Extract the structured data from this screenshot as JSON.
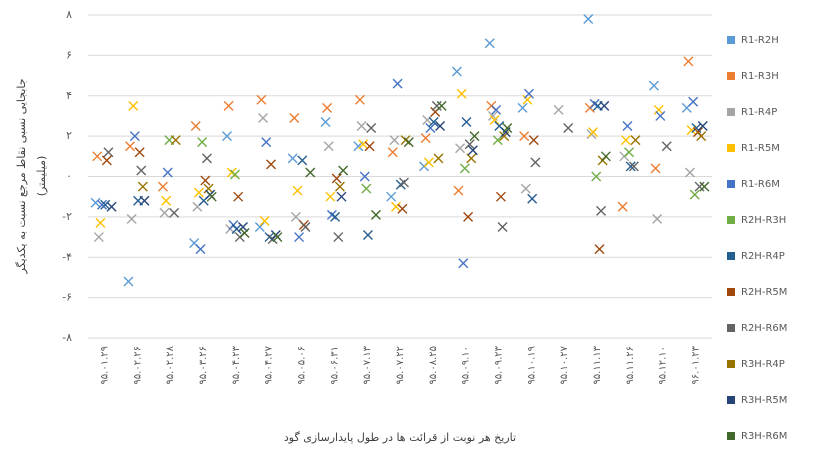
{
  "chart_data": {
    "type": "scatter",
    "y_axis_label": "جابجایی نسبی نقاط مرجع نسبت به یکدیگر",
    "y_axis_unit": "(میلیمتر)",
    "x_axis_label": "تاریخ هر نوبت از قرائت ها در طول پایدارسازی گود",
    "categories": [
      "۹۵.۰۱.۲۹",
      "۹۵.۰۲.۲۶",
      "۹۵.۰۲.۲۸",
      "۹۵.۰۳.۲۶",
      "۹۵.۰۴.۲۳",
      "۹۵.۰۴.۲۷",
      "۹۵.۰۵.۰۶",
      "۹۵.۰۶.۳۱",
      "۹۵.۰۷.۱۳",
      "۹۵.۰۷.۲۲",
      "۹۵.۰۸.۲۵",
      "۹۵.۰۹.۱۰",
      "۹۵.۰۹.۲۳",
      "۹۵.۱۰.۱۹",
      "۹۵.۱۰.۲۷",
      "۹۵.۱۱.۱۳",
      "۹۵.۱۱.۲۶",
      "۹۵.۱۲.۱۰",
      "۹۶.۰۱.۲۳"
    ],
    "ylim": [
      -8,
      8
    ],
    "yticks": [
      {
        "value": 8,
        "label": "۸"
      },
      {
        "value": 6,
        "label": "۶"
      },
      {
        "value": 4,
        "label": "۴"
      },
      {
        "value": 2,
        "label": "۲"
      },
      {
        "value": 0,
        "label": "۰"
      },
      {
        "value": -2,
        "label": "-۲"
      },
      {
        "value": -4,
        "label": "-۴"
      },
      {
        "value": -6,
        "label": "-۶"
      },
      {
        "value": -8,
        "label": "-۸"
      }
    ],
    "grid": true,
    "legend": "right",
    "series": [
      {
        "name": "R1-R2H",
        "color": "#5b9bd5",
        "values": [
          -1.3,
          -5.2,
          null,
          -3.3,
          2.0,
          -2.5,
          0.9,
          2.7,
          1.5,
          -1.0,
          0.5,
          5.2,
          6.6,
          3.4,
          null,
          7.8,
          null,
          4.5,
          3.4
        ]
      },
      {
        "name": "R1-R3H",
        "color": "#ed7d31",
        "values": [
          1.0,
          1.5,
          -0.5,
          2.5,
          3.5,
          3.8,
          2.9,
          3.4,
          3.8,
          1.2,
          1.9,
          -0.7,
          3.5,
          2.0,
          null,
          3.4,
          -1.5,
          0.4,
          5.7
        ]
      },
      {
        "name": "R1-R4P",
        "color": "#a5a5a5",
        "values": [
          -3.0,
          -2.1,
          -1.8,
          -1.5,
          -2.6,
          2.9,
          -2.0,
          1.5,
          2.5,
          1.8,
          2.8,
          1.4,
          3.0,
          -0.6,
          3.3,
          2.1,
          1.0,
          -2.1,
          0.2
        ]
      },
      {
        "name": "R1-R5M",
        "color": "#ffc000",
        "values": [
          -2.3,
          3.5,
          -1.2,
          -0.8,
          0.2,
          -2.2,
          -0.7,
          -1.0,
          1.6,
          -1.5,
          0.7,
          4.1,
          2.8,
          3.8,
          null,
          2.2,
          1.8,
          3.3,
          2.3
        ]
      },
      {
        "name": "R1-R6M",
        "color": "#4472c4",
        "values": [
          -1.4,
          2.0,
          0.2,
          -3.6,
          -2.4,
          1.7,
          -3.0,
          -1.9,
          0.0,
          4.6,
          2.4,
          -4.3,
          3.3,
          4.1,
          null,
          3.6,
          2.5,
          3.0,
          3.7
        ]
      },
      {
        "name": "R2H-R3H",
        "color": "#70ad47",
        "values": [
          null,
          null,
          1.8,
          1.7,
          0.1,
          null,
          null,
          null,
          -0.6,
          null,
          null,
          0.4,
          1.8,
          null,
          null,
          0.0,
          1.2,
          null,
          -0.9
        ]
      },
      {
        "name": "R2H-R4P",
        "color": "#255e91",
        "values": [
          -1.4,
          -1.2,
          null,
          -1.2,
          -2.6,
          -3.0,
          0.8,
          -2.0,
          -2.9,
          -0.4,
          2.7,
          2.7,
          2.5,
          -1.1,
          null,
          3.5,
          0.5,
          null,
          2.4
        ]
      },
      {
        "name": "R2H-R5M",
        "color": "#9e480e",
        "values": [
          0.8,
          1.2,
          null,
          -0.2,
          -1.0,
          0.6,
          -2.4,
          -0.1,
          1.5,
          -1.6,
          3.2,
          -2.0,
          -1.0,
          1.8,
          null,
          -3.6,
          null,
          null,
          2.2
        ]
      },
      {
        "name": "R2H-R6M",
        "color": "#636363",
        "values": [
          1.2,
          0.3,
          -1.8,
          0.9,
          -3.0,
          -3.1,
          -2.5,
          -3.0,
          2.4,
          -0.3,
          3.5,
          1.6,
          -2.5,
          0.7,
          2.4,
          -1.7,
          0.5,
          1.5,
          -0.5
        ]
      },
      {
        "name": "R3H-R4P",
        "color": "#997300",
        "values": [
          null,
          -0.5,
          1.8,
          -0.6,
          null,
          null,
          null,
          -0.5,
          null,
          1.8,
          0.9,
          0.9,
          2.0,
          null,
          null,
          0.8,
          1.8,
          null,
          2.0
        ]
      },
      {
        "name": "R3H-R5M",
        "color": "#264478",
        "values": [
          -1.5,
          -1.2,
          null,
          -0.9,
          -2.5,
          -2.9,
          null,
          -1.0,
          null,
          null,
          2.5,
          1.3,
          2.2,
          null,
          null,
          3.5,
          null,
          null,
          2.5
        ]
      },
      {
        "name": "R3H-R6M",
        "color": "#43682b",
        "values": [
          null,
          null,
          null,
          -1.0,
          -2.8,
          -3.0,
          0.2,
          0.3,
          -1.9,
          1.7,
          3.5,
          2.0,
          2.4,
          null,
          null,
          1.0,
          null,
          null,
          -0.5
        ]
      }
    ]
  }
}
